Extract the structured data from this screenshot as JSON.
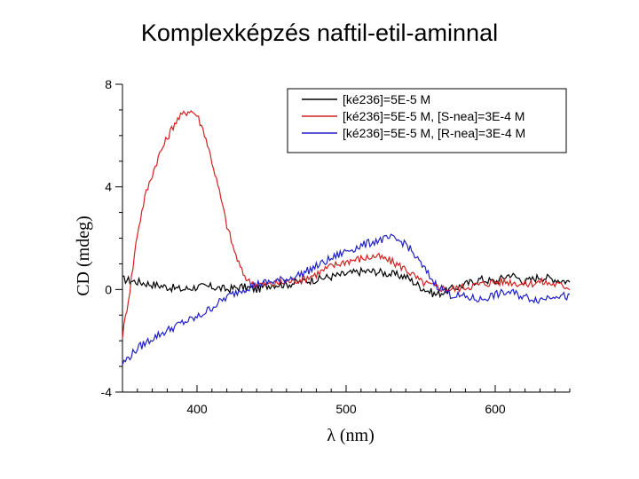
{
  "slide": {
    "title": "Komplexképzés naftil-etil-aminnal"
  },
  "chart_data": {
    "type": "line",
    "title": "",
    "xlabel": "λ (nm)",
    "ylabel": "CD (mdeg)",
    "xlim": [
      350,
      650
    ],
    "ylim": [
      -4,
      8
    ],
    "x_ticks": [
      400,
      500,
      600
    ],
    "y_ticks": [
      -4,
      0,
      4,
      8
    ],
    "grid": false,
    "legend_position": "top-right",
    "series": [
      {
        "name": "[ké236]=5E-5 M",
        "color": "#000000",
        "x": [
          350,
          360,
          370,
          380,
          390,
          400,
          410,
          420,
          430,
          440,
          450,
          460,
          470,
          480,
          490,
          500,
          510,
          520,
          530,
          540,
          550,
          560,
          570,
          580,
          590,
          600,
          610,
          620,
          630,
          640,
          650
        ],
        "y": [
          0.4,
          0.3,
          0.2,
          0.1,
          0.0,
          0.1,
          0.1,
          0.0,
          0.1,
          0.0,
          0.2,
          0.2,
          0.3,
          0.4,
          0.5,
          0.6,
          0.7,
          0.7,
          0.6,
          0.5,
          0.1,
          -0.2,
          0.0,
          0.2,
          0.4,
          0.3,
          0.6,
          0.3,
          0.5,
          0.4,
          0.3
        ]
      },
      {
        "name": "[ké236]=5E-5 M, [S-nea]=3E-4 M",
        "color": "#d42020",
        "x": [
          350,
          355,
          360,
          365,
          370,
          375,
          380,
          385,
          390,
          395,
          400,
          405,
          410,
          415,
          420,
          425,
          430,
          435,
          440,
          450,
          460,
          470,
          480,
          490,
          500,
          510,
          520,
          530,
          540,
          550,
          560,
          570,
          580,
          590,
          600,
          610,
          620,
          630,
          640,
          650
        ],
        "y": [
          -1.8,
          0.0,
          2.2,
          3.6,
          4.5,
          5.3,
          5.9,
          6.5,
          6.8,
          7.0,
          6.8,
          6.1,
          5.0,
          3.8,
          2.5,
          1.5,
          0.7,
          0.3,
          0.2,
          0.2,
          0.3,
          0.4,
          0.6,
          0.9,
          1.1,
          1.2,
          1.3,
          1.1,
          0.8,
          0.3,
          0.1,
          0.0,
          0.1,
          0.2,
          0.3,
          0.3,
          0.2,
          0.3,
          0.2,
          0.1
        ]
      },
      {
        "name": "[ké236]=5E-5 M, [R-nea]=3E-4 M",
        "color": "#2020c8",
        "x": [
          350,
          360,
          370,
          380,
          390,
          400,
          410,
          420,
          430,
          440,
          450,
          460,
          470,
          480,
          490,
          500,
          510,
          520,
          530,
          540,
          550,
          560,
          570,
          580,
          590,
          600,
          610,
          620,
          630,
          640,
          650
        ],
        "y": [
          -2.9,
          -2.3,
          -1.9,
          -1.6,
          -1.3,
          -1.1,
          -0.7,
          -0.3,
          0.0,
          0.2,
          0.3,
          0.4,
          0.6,
          0.9,
          1.2,
          1.5,
          1.7,
          1.9,
          2.0,
          1.8,
          1.0,
          0.2,
          -0.2,
          -0.3,
          -0.4,
          -0.2,
          -0.1,
          -0.3,
          -0.4,
          -0.2,
          -0.3
        ]
      }
    ]
  }
}
